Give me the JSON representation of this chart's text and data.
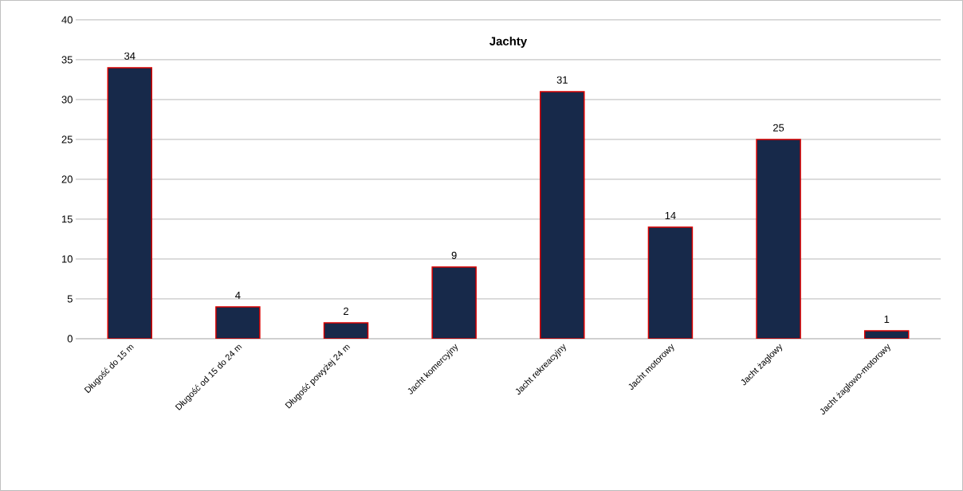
{
  "chart_data": {
    "type": "bar",
    "title": "Jachty",
    "categories": [
      "Długość do 15 m",
      "Długość od 15 do 24 m",
      "Długość powyżej 24 m",
      "Jacht komercyjny",
      "Jacht rekreacyjny",
      "Jacht motorowy",
      "Jacht żaglowy",
      "Jacht żaglowo-motorowy"
    ],
    "values": [
      34,
      4,
      2,
      9,
      31,
      14,
      25,
      1
    ],
    "color": "#17294a",
    "ylim": [
      0,
      40
    ],
    "yticks": [
      0,
      5,
      10,
      15,
      20,
      25,
      30,
      35,
      40
    ],
    "grid": "y",
    "data_labels": true
  }
}
